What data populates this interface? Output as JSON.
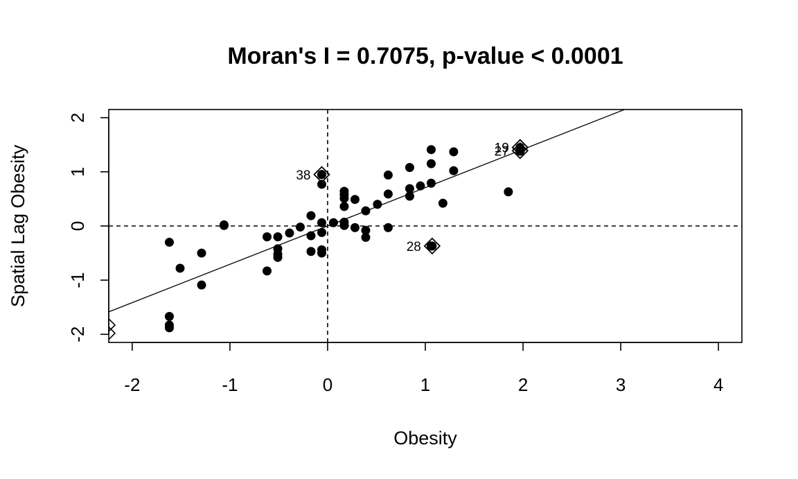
{
  "chart_data": {
    "type": "scatter",
    "title": "Moran's I = 0.7075, p-value < 0.0001",
    "xlabel": "Obesity",
    "ylabel": "Spatial Lag Obesity",
    "xlim": [
      -2.24,
      4.24
    ],
    "ylim": [
      -2.15,
      2.15
    ],
    "xticks": [
      -2,
      -1,
      0,
      1,
      2,
      3,
      4
    ],
    "yticks": [
      -2,
      -1,
      0,
      1,
      2
    ],
    "x_tick_labels": [
      "-2",
      "-1",
      "0",
      "1",
      "2",
      "3",
      "4"
    ],
    "y_tick_labels": [
      "-2",
      "-1",
      "0",
      "1",
      "2"
    ],
    "reference_lines": {
      "x": 0,
      "y": 0,
      "style": "dashed"
    },
    "regression_line": {
      "slope": 0.7075,
      "intercept": 0.0
    },
    "points": [
      {
        "x": -1.62,
        "y": -0.3
      },
      {
        "x": -1.62,
        "y": -1.67
      },
      {
        "x": -1.62,
        "y": -1.83
      },
      {
        "x": -1.62,
        "y": -1.88
      },
      {
        "x": -1.51,
        "y": -0.78
      },
      {
        "x": -1.29,
        "y": -0.5
      },
      {
        "x": -1.29,
        "y": -1.09
      },
      {
        "x": -1.06,
        "y": 0.02
      },
      {
        "x": -1.06,
        "y": 0.01
      },
      {
        "x": -0.62,
        "y": -0.2
      },
      {
        "x": -0.62,
        "y": -0.83
      },
      {
        "x": -0.51,
        "y": -0.2
      },
      {
        "x": -0.51,
        "y": -0.42
      },
      {
        "x": -0.51,
        "y": -0.52
      },
      {
        "x": -0.51,
        "y": -0.58
      },
      {
        "x": -0.39,
        "y": -0.13
      },
      {
        "x": -0.28,
        "y": -0.02
      },
      {
        "x": -0.17,
        "y": 0.19
      },
      {
        "x": -0.17,
        "y": -0.18
      },
      {
        "x": -0.17,
        "y": -0.47
      },
      {
        "x": -0.06,
        "y": 0.95
      },
      {
        "x": -0.06,
        "y": 0.77
      },
      {
        "x": -0.06,
        "y": 0.06
      },
      {
        "x": -0.06,
        "y": -0.12
      },
      {
        "x": -0.06,
        "y": -0.44
      },
      {
        "x": -0.06,
        "y": -0.5
      },
      {
        "x": 0.06,
        "y": 0.06
      },
      {
        "x": 0.17,
        "y": 0.64
      },
      {
        "x": 0.17,
        "y": 0.58
      },
      {
        "x": 0.17,
        "y": 0.51
      },
      {
        "x": 0.17,
        "y": 0.36
      },
      {
        "x": 0.17,
        "y": 0.07
      },
      {
        "x": 0.17,
        "y": 0.01
      },
      {
        "x": 0.28,
        "y": 0.49
      },
      {
        "x": 0.28,
        "y": -0.03
      },
      {
        "x": 0.39,
        "y": 0.28
      },
      {
        "x": 0.39,
        "y": -0.08
      },
      {
        "x": 0.39,
        "y": -0.21
      },
      {
        "x": 0.51,
        "y": 0.4
      },
      {
        "x": 0.62,
        "y": 0.94
      },
      {
        "x": 0.62,
        "y": 0.59
      },
      {
        "x": 0.62,
        "y": -0.03
      },
      {
        "x": 0.84,
        "y": 1.08
      },
      {
        "x": 0.84,
        "y": 0.69
      },
      {
        "x": 0.84,
        "y": 0.55
      },
      {
        "x": 0.95,
        "y": 0.74
      },
      {
        "x": 1.06,
        "y": 1.41
      },
      {
        "x": 1.06,
        "y": 1.15
      },
      {
        "x": 1.06,
        "y": 0.79
      },
      {
        "x": 1.06,
        "y": -0.37
      },
      {
        "x": 1.18,
        "y": 0.42
      },
      {
        "x": 1.29,
        "y": 1.37
      },
      {
        "x": 1.29,
        "y": 1.02
      },
      {
        "x": 1.85,
        "y": 0.63
      },
      {
        "x": 1.97,
        "y": 1.44
      },
      {
        "x": 1.97,
        "y": 1.38
      }
    ],
    "influential_points": [
      {
        "label": "38",
        "x": -0.06,
        "y": 0.95,
        "label_side": "left"
      },
      {
        "label": "28",
        "x": 1.07,
        "y": -0.37,
        "label_side": "left"
      },
      {
        "label": "19",
        "x": 1.97,
        "y": 1.45,
        "label_side": "left"
      },
      {
        "label": "27",
        "x": 1.97,
        "y": 1.39,
        "label_side": "left"
      }
    ],
    "clipped_markers": [
      {
        "x": -2.24,
        "y": -1.83
      },
      {
        "x": -2.24,
        "y": -1.98
      }
    ]
  }
}
